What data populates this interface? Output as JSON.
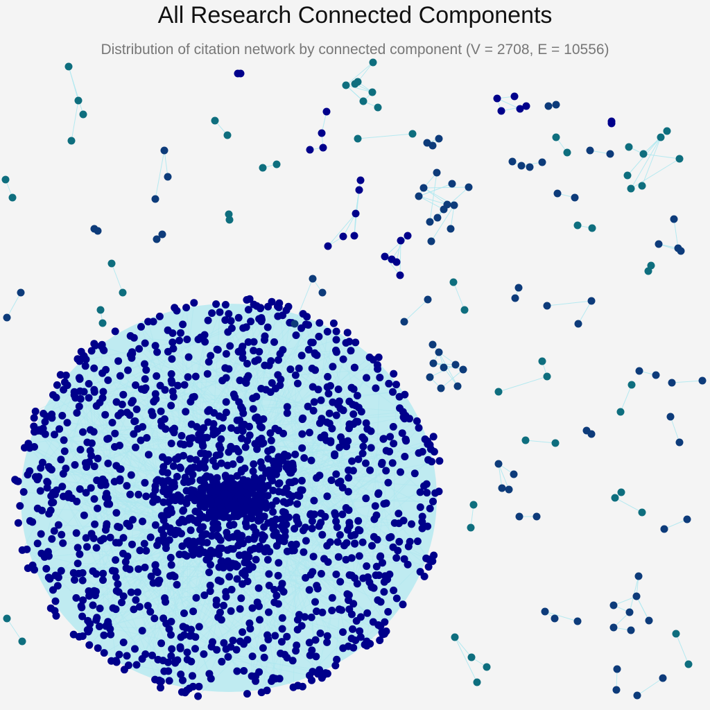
{
  "header": {
    "title": "All Research Connected Components",
    "subtitle": "Distribution of citation network by connected component (V = 2708, E = 10556)"
  },
  "colors": {
    "background": "#f4f4f4",
    "edge": "#aee8f0",
    "giant_component_node": "#00008b",
    "small_component_node_dark": "#0d3b7a",
    "small_component_node_teal": "#0e6e7e"
  },
  "network": {
    "vertices": 2708,
    "edges": 10556
  }
}
